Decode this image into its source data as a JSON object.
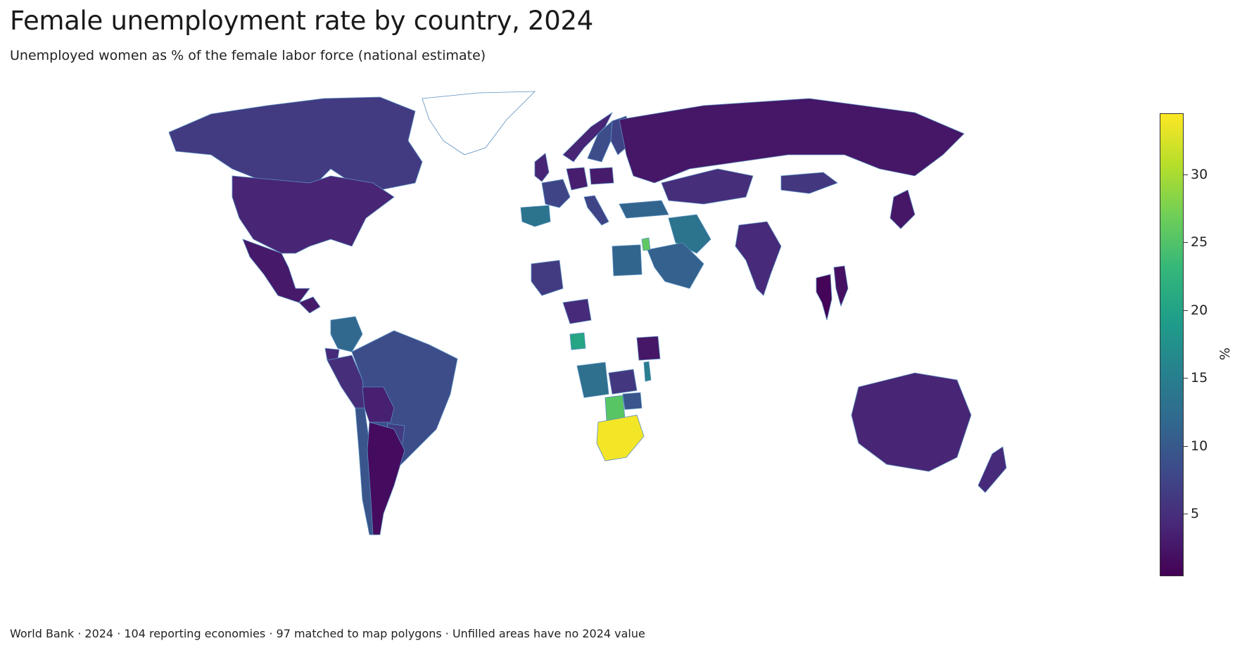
{
  "header": {
    "title": "Female unemployment rate by country, 2024",
    "subtitle": "Unemployed women as % of the female labor force (national estimate)"
  },
  "footer": {
    "note": "World Bank · 2024 · 104 reporting economies · 97 matched to map polygons · Unfilled areas have no 2024 value"
  },
  "chart_data": {
    "type": "choropleth",
    "colorscale": "viridis",
    "colorbar": {
      "title": "%",
      "range": [
        0.5,
        34.5
      ],
      "ticks": [
        5,
        10,
        15,
        20,
        25,
        30
      ],
      "tick_labels": [
        "5",
        "10",
        "15",
        "20",
        "25",
        "30"
      ]
    },
    "colors": {
      "border": "#5a8fbf",
      "no_data": "#ffffff",
      "low": "#440154",
      "high": "#fde725"
    },
    "regions": [
      {
        "name": "Canada",
        "value": 6.5
      },
      {
        "name": "United States",
        "value": 4.0
      },
      {
        "name": "Mexico",
        "value": 2.8
      },
      {
        "name": "Guatemala",
        "value": 3.0
      },
      {
        "name": "Colombia",
        "value": 12.0
      },
      {
        "name": "Ecuador",
        "value": 4.5
      },
      {
        "name": "Peru",
        "value": 5.0
      },
      {
        "name": "Brazil",
        "value": 8.5
      },
      {
        "name": "Bolivia",
        "value": 3.5
      },
      {
        "name": "Paraguay",
        "value": 6.5
      },
      {
        "name": "Chile",
        "value": 9.5
      },
      {
        "name": "Argentina",
        "value": 1.5
      },
      {
        "name": "Greenland",
        "value": null
      },
      {
        "name": "United Kingdom",
        "value": 4.0
      },
      {
        "name": "Spain",
        "value": 13.5
      },
      {
        "name": "France",
        "value": 7.5
      },
      {
        "name": "Germany",
        "value": 3.2
      },
      {
        "name": "Italy",
        "value": 7.5
      },
      {
        "name": "Poland",
        "value": 3.0
      },
      {
        "name": "Sweden",
        "value": 8.5
      },
      {
        "name": "Finland",
        "value": 7.5
      },
      {
        "name": "Norway",
        "value": 4.0
      },
      {
        "name": "Russia",
        "value": 2.5
      },
      {
        "name": "Kazakhstan",
        "value": 5.0
      },
      {
        "name": "Mongolia",
        "value": 6.0
      },
      {
        "name": "Turkey",
        "value": 11.5
      },
      {
        "name": "Iran",
        "value": 13.5
      },
      {
        "name": "Saudi Arabia",
        "value": 11.0
      },
      {
        "name": "Jordan",
        "value": 26.0
      },
      {
        "name": "Egypt",
        "value": 11.5
      },
      {
        "name": "India",
        "value": 4.5
      },
      {
        "name": "Thailand",
        "value": 0.8
      },
      {
        "name": "Vietnam",
        "value": 2.0
      },
      {
        "name": "Japan",
        "value": 2.5
      },
      {
        "name": "Mali",
        "value": 6.5
      },
      {
        "name": "Nigeria",
        "value": 4.5
      },
      {
        "name": "Gabon",
        "value": 20.5
      },
      {
        "name": "Angola",
        "value": 13.0
      },
      {
        "name": "Zambia",
        "value": 6.0
      },
      {
        "name": "Zimbabwe",
        "value": 9.5
      },
      {
        "name": "Botswana",
        "value": 25.5
      },
      {
        "name": "South Africa",
        "value": 34.0
      },
      {
        "name": "Tanzania",
        "value": 2.5
      },
      {
        "name": "Malawi",
        "value": 15.0
      },
      {
        "name": "Australia",
        "value": 4.0
      },
      {
        "name": "New Zealand",
        "value": 4.5
      }
    ]
  }
}
